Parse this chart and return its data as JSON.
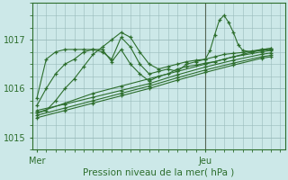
{
  "background_color": "#cce8e8",
  "grid_color": "#99bbbb",
  "line_color": "#2d6e2d",
  "marker_color": "#2d6e2d",
  "xlabel": "Pression niveau de la mer( hPa )",
  "x_ticks": [
    0,
    36
  ],
  "x_tick_labels": [
    "Mer",
    "Jeu"
  ],
  "ylim": [
    1014.75,
    1017.75
  ],
  "yticks": [
    1015,
    1016,
    1017
  ],
  "xlim": [
    -1,
    53
  ],
  "vline_x": 36,
  "series": [
    {
      "x": [
        0,
        2,
        4,
        6,
        8,
        10,
        12,
        14,
        16,
        18,
        20,
        22,
        24,
        26,
        28,
        30,
        32,
        34,
        36,
        38,
        40,
        42,
        44,
        46,
        48,
        50
      ],
      "y": [
        1015.8,
        1016.6,
        1016.75,
        1016.8,
        1016.8,
        1016.8,
        1016.8,
        1016.8,
        1016.55,
        1016.8,
        1016.5,
        1016.3,
        1016.15,
        1016.25,
        1016.3,
        1016.4,
        1016.45,
        1016.48,
        1016.52,
        1016.55,
        1016.6,
        1016.65,
        1016.7,
        1016.75,
        1016.8,
        1016.82
      ]
    },
    {
      "x": [
        0,
        2,
        4,
        6,
        8,
        10,
        12,
        14,
        16,
        18,
        20,
        22,
        24,
        26,
        28,
        30,
        32,
        34,
        36,
        38,
        40,
        42,
        44,
        46,
        48,
        50
      ],
      "y": [
        1015.65,
        1016.0,
        1016.3,
        1016.5,
        1016.6,
        1016.75,
        1016.8,
        1016.75,
        1016.6,
        1017.05,
        1016.85,
        1016.5,
        1016.3,
        1016.35,
        1016.4,
        1016.35,
        1016.5,
        1016.55,
        1016.6,
        1016.65,
        1016.7,
        1016.72,
        1016.74,
        1016.77,
        1016.8,
        1016.82
      ]
    },
    {
      "x": [
        0,
        2,
        4,
        6,
        8,
        10,
        12,
        14,
        16,
        18,
        20,
        22,
        24,
        26,
        28,
        30,
        32,
        34,
        36,
        37,
        38,
        39,
        40,
        41,
        42,
        43,
        44,
        46,
        48,
        50
      ],
      "y": [
        1015.5,
        1015.55,
        1015.75,
        1016.0,
        1016.2,
        1016.45,
        1016.7,
        1016.85,
        1017.0,
        1017.15,
        1017.05,
        1016.75,
        1016.5,
        1016.4,
        1016.45,
        1016.5,
        1016.55,
        1016.58,
        1016.6,
        1016.78,
        1017.1,
        1017.4,
        1017.5,
        1017.35,
        1017.15,
        1016.9,
        1016.78,
        1016.75,
        1016.78,
        1016.8
      ]
    },
    {
      "x": [
        0,
        6,
        12,
        18,
        24,
        30,
        36,
        42,
        48,
        50
      ],
      "y": [
        1015.5,
        1015.7,
        1015.9,
        1016.05,
        1016.2,
        1016.35,
        1016.5,
        1016.65,
        1016.75,
        1016.78
      ]
    },
    {
      "x": [
        0,
        6,
        12,
        18,
        24,
        30,
        36,
        42,
        48,
        50
      ],
      "y": [
        1015.55,
        1015.68,
        1015.82,
        1015.96,
        1016.1,
        1016.28,
        1016.44,
        1016.58,
        1016.7,
        1016.73
      ]
    },
    {
      "x": [
        0,
        6,
        12,
        18,
        24,
        30,
        36,
        42,
        48,
        50
      ],
      "y": [
        1015.45,
        1015.6,
        1015.75,
        1015.9,
        1016.05,
        1016.22,
        1016.38,
        1016.52,
        1016.65,
        1016.68
      ]
    },
    {
      "x": [
        0,
        6,
        12,
        18,
        24,
        30,
        36,
        42,
        48,
        50
      ],
      "y": [
        1015.4,
        1015.55,
        1015.7,
        1015.85,
        1016.0,
        1016.17,
        1016.33,
        1016.48,
        1016.62,
        1016.65
      ]
    }
  ]
}
